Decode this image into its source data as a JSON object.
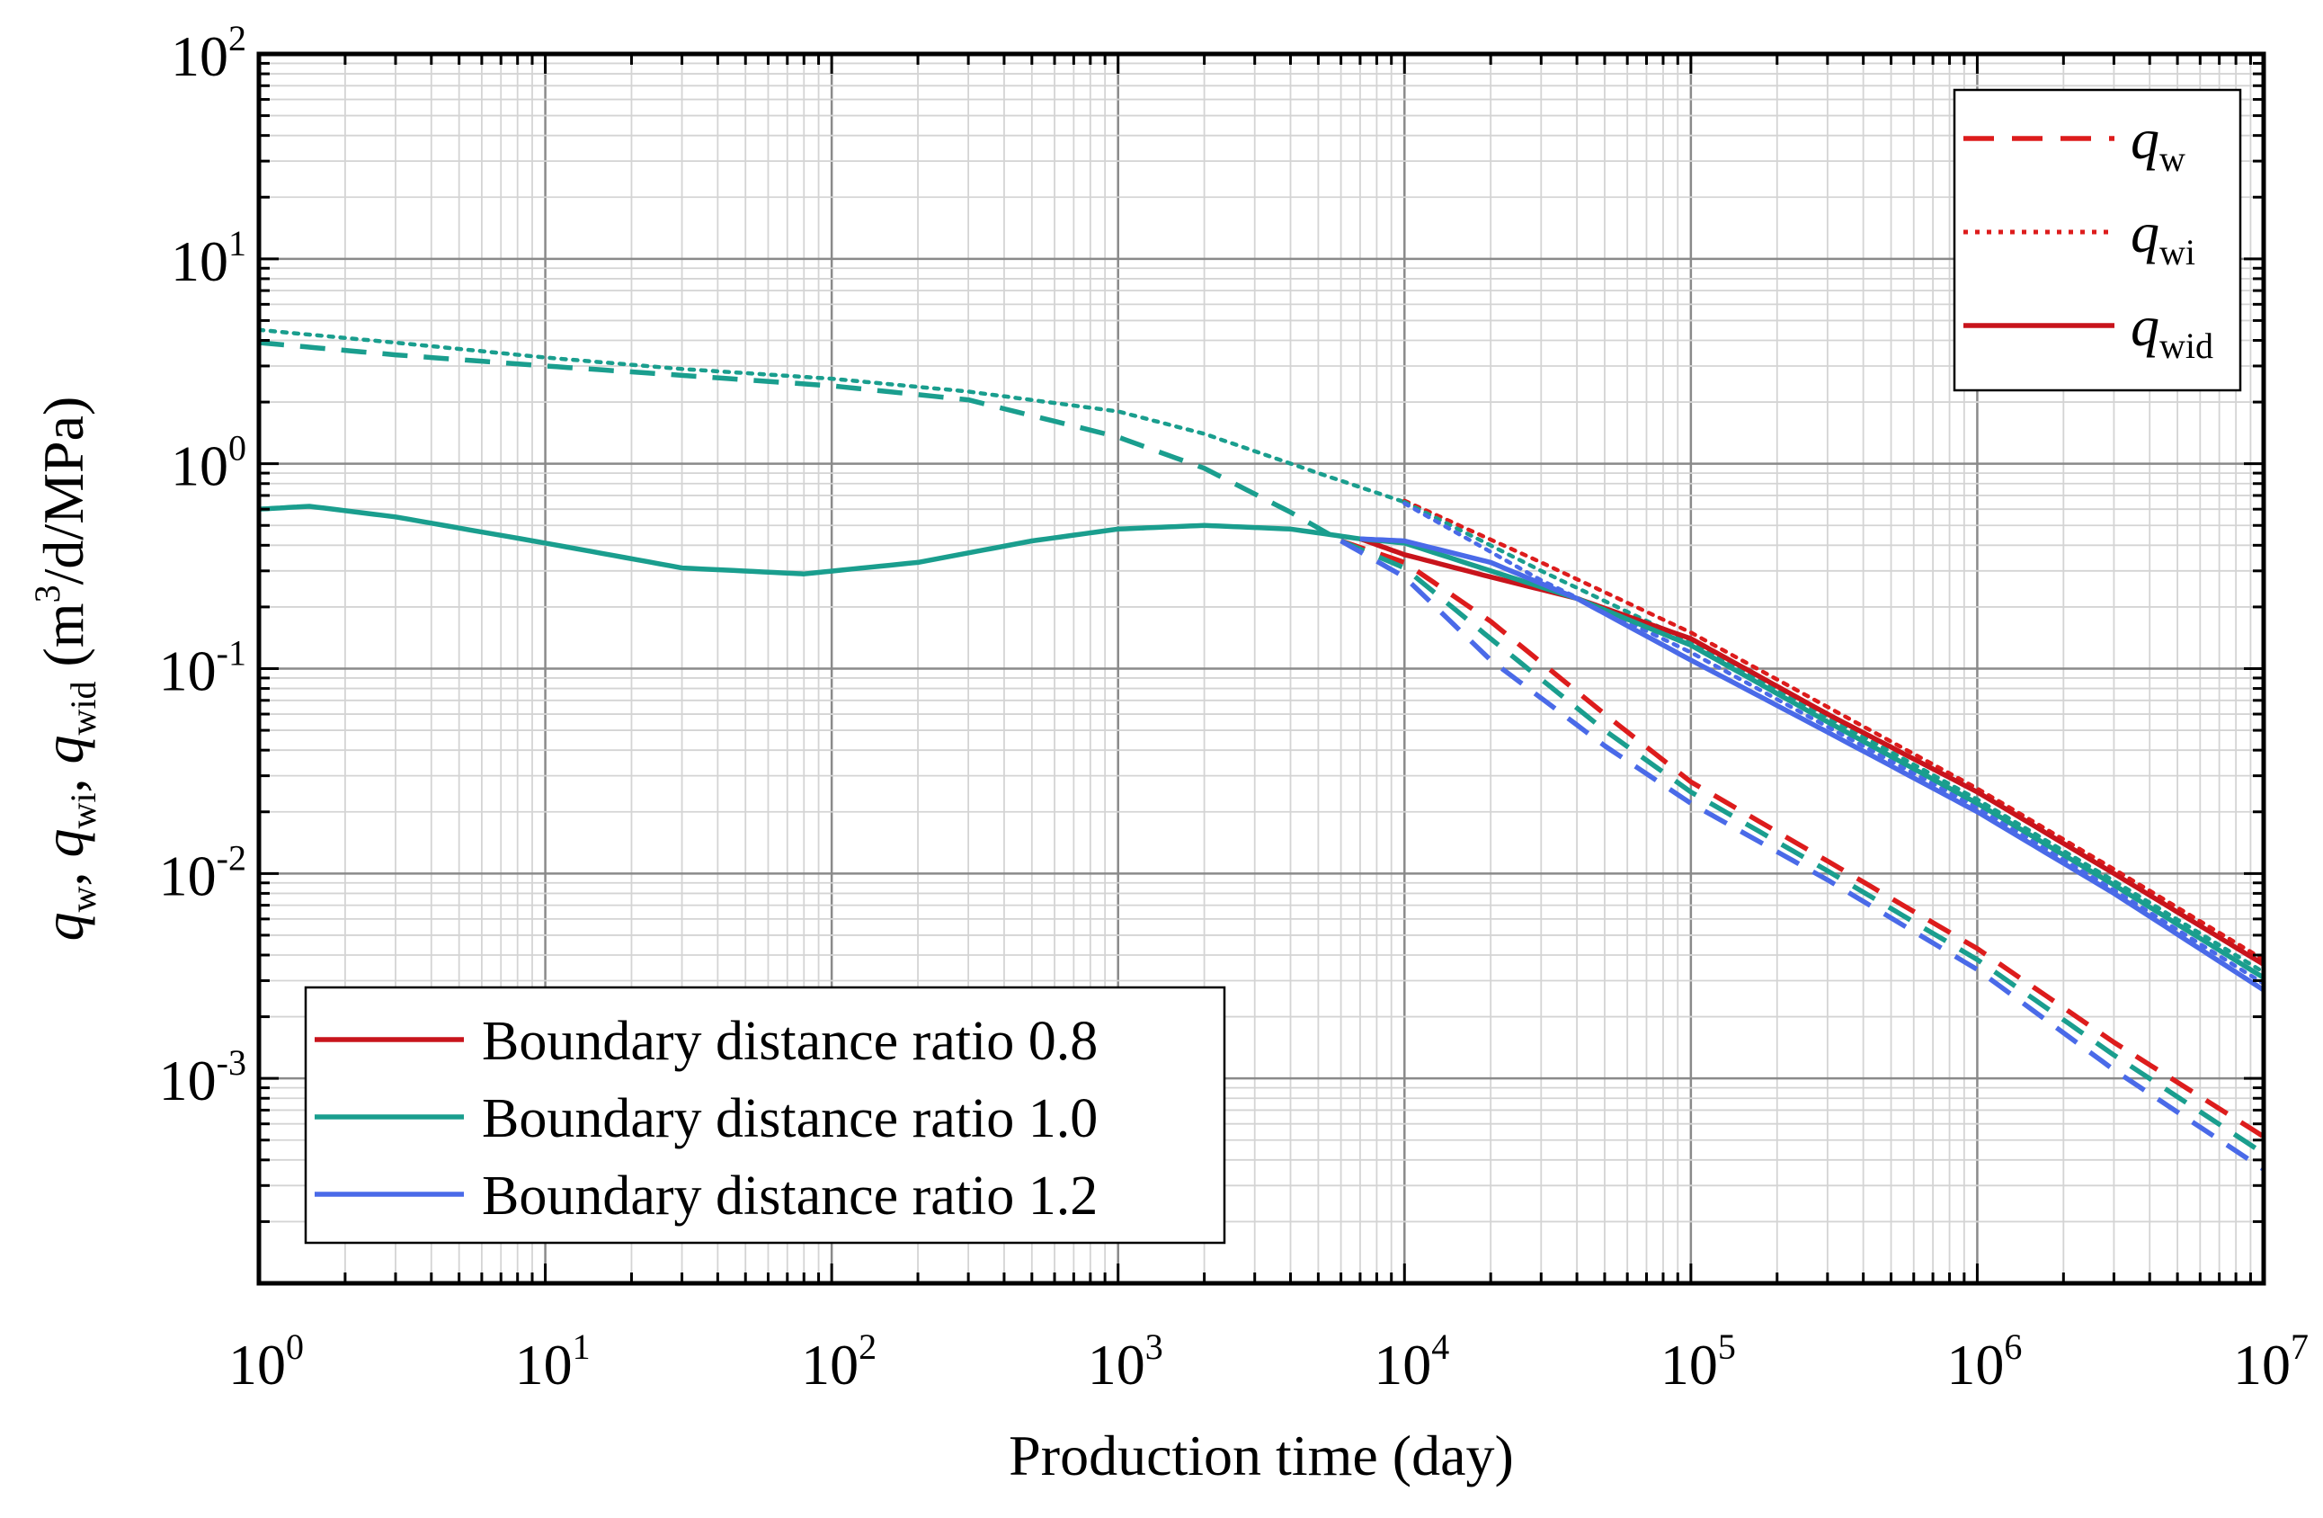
{
  "chart_data": {
    "type": "line",
    "xscale": "log",
    "yscale": "log",
    "xlim": [
      1,
      10000000
    ],
    "ylim": [
      0.0001,
      100
    ],
    "xlabel": "Production time (day)",
    "ylabel": {
      "prefix": "(m",
      "exp": "3",
      "suffix": "/d/MPa)",
      "symbols": [
        {
          "q": "q",
          "sub": "w",
          "sep": ", "
        },
        {
          "q": "q",
          "sub": "wi",
          "sep": ", "
        },
        {
          "q": "q",
          "sub": "wid",
          "sep": " "
        }
      ]
    },
    "x_ticks": [
      {
        "base": "10",
        "exp": "0",
        "value": 1
      },
      {
        "base": "10",
        "exp": "1",
        "value": 10
      },
      {
        "base": "10",
        "exp": "2",
        "value": 100
      },
      {
        "base": "10",
        "exp": "3",
        "value": 1000
      },
      {
        "base": "10",
        "exp": "4",
        "value": 10000
      },
      {
        "base": "10",
        "exp": "5",
        "value": 100000
      },
      {
        "base": "10",
        "exp": "6",
        "value": 1000000
      },
      {
        "base": "10",
        "exp": "7",
        "value": 10000000
      }
    ],
    "y_ticks": [
      {
        "base": "10",
        "exp": "2",
        "value": 100
      },
      {
        "base": "10",
        "exp": "1",
        "value": 10
      },
      {
        "base": "10",
        "exp": "0",
        "value": 1
      },
      {
        "base": "10",
        "exp": "-1",
        "value": 0.1
      },
      {
        "base": "10",
        "exp": "-2",
        "value": 0.01
      },
      {
        "base": "10",
        "exp": "-3",
        "value": 0.001
      }
    ],
    "grid": true,
    "legend_style": {
      "position": "top-right",
      "entries": [
        {
          "q": "q",
          "sub": "w",
          "dash": "dashed",
          "color": "#dd1c1c"
        },
        {
          "q": "q",
          "sub": "wi",
          "dash": "dotted",
          "color": "#dd1c1c"
        },
        {
          "q": "q",
          "sub": "wid",
          "dash": "solid",
          "color": "#c8141c"
        }
      ]
    },
    "legend_color": {
      "position": "bottom-left",
      "entries": [
        {
          "label": "Boundary distance ratio 0.8",
          "color": "#c8141c"
        },
        {
          "label": "Boundary distance ratio 1.0",
          "color": "#1a9e8e"
        },
        {
          "label": "Boundary distance ratio 1.2",
          "color": "#4a6ae8"
        }
      ]
    },
    "series": [
      {
        "name": "q_w, ratio 1.0 (early, shared)",
        "color": "#1a9e8e",
        "style": "dashed",
        "points": [
          [
            1,
            3.9
          ],
          [
            3,
            3.4
          ],
          [
            10,
            3.0
          ],
          [
            30,
            2.7
          ],
          [
            100,
            2.4
          ],
          [
            300,
            2.05
          ],
          [
            1000,
            1.35
          ],
          [
            2000,
            0.95
          ],
          [
            4000,
            0.58
          ],
          [
            6000,
            0.42
          ]
        ]
      },
      {
        "name": "q_wi, ratio 1.0 (early, shared)",
        "color": "#1a9e8e",
        "style": "dotted",
        "points": [
          [
            1,
            4.5
          ],
          [
            3,
            3.9
          ],
          [
            10,
            3.3
          ],
          [
            30,
            2.9
          ],
          [
            100,
            2.6
          ],
          [
            300,
            2.25
          ],
          [
            1000,
            1.8
          ],
          [
            2000,
            1.4
          ],
          [
            5000,
            0.9
          ],
          [
            10000,
            0.65
          ]
        ]
      },
      {
        "name": "q_wid, ratio 1.0 (early, shared)",
        "color": "#1a9e8e",
        "style": "solid",
        "points": [
          [
            1,
            0.6
          ],
          [
            1.5,
            0.62
          ],
          [
            3,
            0.55
          ],
          [
            10,
            0.41
          ],
          [
            30,
            0.31
          ],
          [
            80,
            0.29
          ],
          [
            200,
            0.33
          ],
          [
            500,
            0.42
          ],
          [
            1000,
            0.48
          ],
          [
            2000,
            0.5
          ],
          [
            4000,
            0.48
          ],
          [
            7000,
            0.43
          ]
        ]
      },
      {
        "name": "q_w, ratio 0.8",
        "color": "#dd1c1c",
        "style": "dashed",
        "points": [
          [
            6000,
            0.42
          ],
          [
            10000,
            0.33
          ],
          [
            20000,
            0.17
          ],
          [
            50000,
            0.06
          ],
          [
            100000,
            0.028
          ],
          [
            300000,
            0.0115
          ],
          [
            1000000,
            0.0043
          ],
          [
            3000000,
            0.0015
          ],
          [
            10000000,
            0.00052
          ]
        ]
      },
      {
        "name": "q_w, ratio 1.0",
        "color": "#1a9e8e",
        "style": "dashed",
        "points": [
          [
            6000,
            0.42
          ],
          [
            10000,
            0.31
          ],
          [
            20000,
            0.14
          ],
          [
            50000,
            0.05
          ],
          [
            100000,
            0.025
          ],
          [
            300000,
            0.0103
          ],
          [
            1000000,
            0.0038
          ],
          [
            3000000,
            0.0013
          ],
          [
            10000000,
            0.00043
          ]
        ]
      },
      {
        "name": "q_w, ratio 1.2",
        "color": "#4a6ae8",
        "style": "dashed",
        "points": [
          [
            6000,
            0.42
          ],
          [
            10000,
            0.28
          ],
          [
            20000,
            0.11
          ],
          [
            50000,
            0.042
          ],
          [
            100000,
            0.022
          ],
          [
            300000,
            0.0093
          ],
          [
            1000000,
            0.0034
          ],
          [
            3000000,
            0.0011
          ],
          [
            10000000,
            0.00036
          ]
        ]
      },
      {
        "name": "q_wi, ratio 0.8",
        "color": "#dd1c1c",
        "style": "dotted",
        "points": [
          [
            10000,
            0.66
          ],
          [
            30000,
            0.33
          ],
          [
            100000,
            0.15
          ],
          [
            300000,
            0.065
          ],
          [
            1000000,
            0.026
          ],
          [
            3000000,
            0.0105
          ],
          [
            10000000,
            0.0038
          ]
        ]
      },
      {
        "name": "q_wi, ratio 1.0",
        "color": "#1a9e8e",
        "style": "dotted",
        "points": [
          [
            10000,
            0.65
          ],
          [
            30000,
            0.3
          ],
          [
            100000,
            0.135
          ],
          [
            300000,
            0.058
          ],
          [
            1000000,
            0.023
          ],
          [
            3000000,
            0.0092
          ],
          [
            10000000,
            0.0033
          ]
        ]
      },
      {
        "name": "q_wi, ratio 1.2",
        "color": "#4a6ae8",
        "style": "dotted",
        "points": [
          [
            10000,
            0.64
          ],
          [
            30000,
            0.27
          ],
          [
            100000,
            0.12
          ],
          [
            300000,
            0.052
          ],
          [
            1000000,
            0.021
          ],
          [
            3000000,
            0.0083
          ],
          [
            10000000,
            0.0029
          ]
        ]
      },
      {
        "name": "q_wid, ratio 0.8",
        "color": "#c8141c",
        "style": "solid",
        "points": [
          [
            7000,
            0.43
          ],
          [
            10000,
            0.36
          ],
          [
            20000,
            0.28
          ],
          [
            40000,
            0.22
          ],
          [
            100000,
            0.14
          ],
          [
            300000,
            0.06
          ],
          [
            1000000,
            0.025
          ],
          [
            3000000,
            0.01
          ],
          [
            10000000,
            0.0036
          ]
        ]
      },
      {
        "name": "q_wid, ratio 1.0",
        "color": "#1a9e8e",
        "style": "solid",
        "points": [
          [
            7000,
            0.43
          ],
          [
            10000,
            0.41
          ],
          [
            20000,
            0.3
          ],
          [
            40000,
            0.22
          ],
          [
            100000,
            0.13
          ],
          [
            300000,
            0.055
          ],
          [
            1000000,
            0.022
          ],
          [
            3000000,
            0.0088
          ],
          [
            10000000,
            0.0031
          ]
        ]
      },
      {
        "name": "q_wid, ratio 1.2",
        "color": "#4a6ae8",
        "style": "solid",
        "points": [
          [
            7000,
            0.43
          ],
          [
            10000,
            0.42
          ],
          [
            20000,
            0.33
          ],
          [
            40000,
            0.22
          ],
          [
            100000,
            0.11
          ],
          [
            300000,
            0.049
          ],
          [
            1000000,
            0.02
          ],
          [
            3000000,
            0.008
          ],
          [
            10000000,
            0.0027
          ]
        ]
      }
    ]
  }
}
